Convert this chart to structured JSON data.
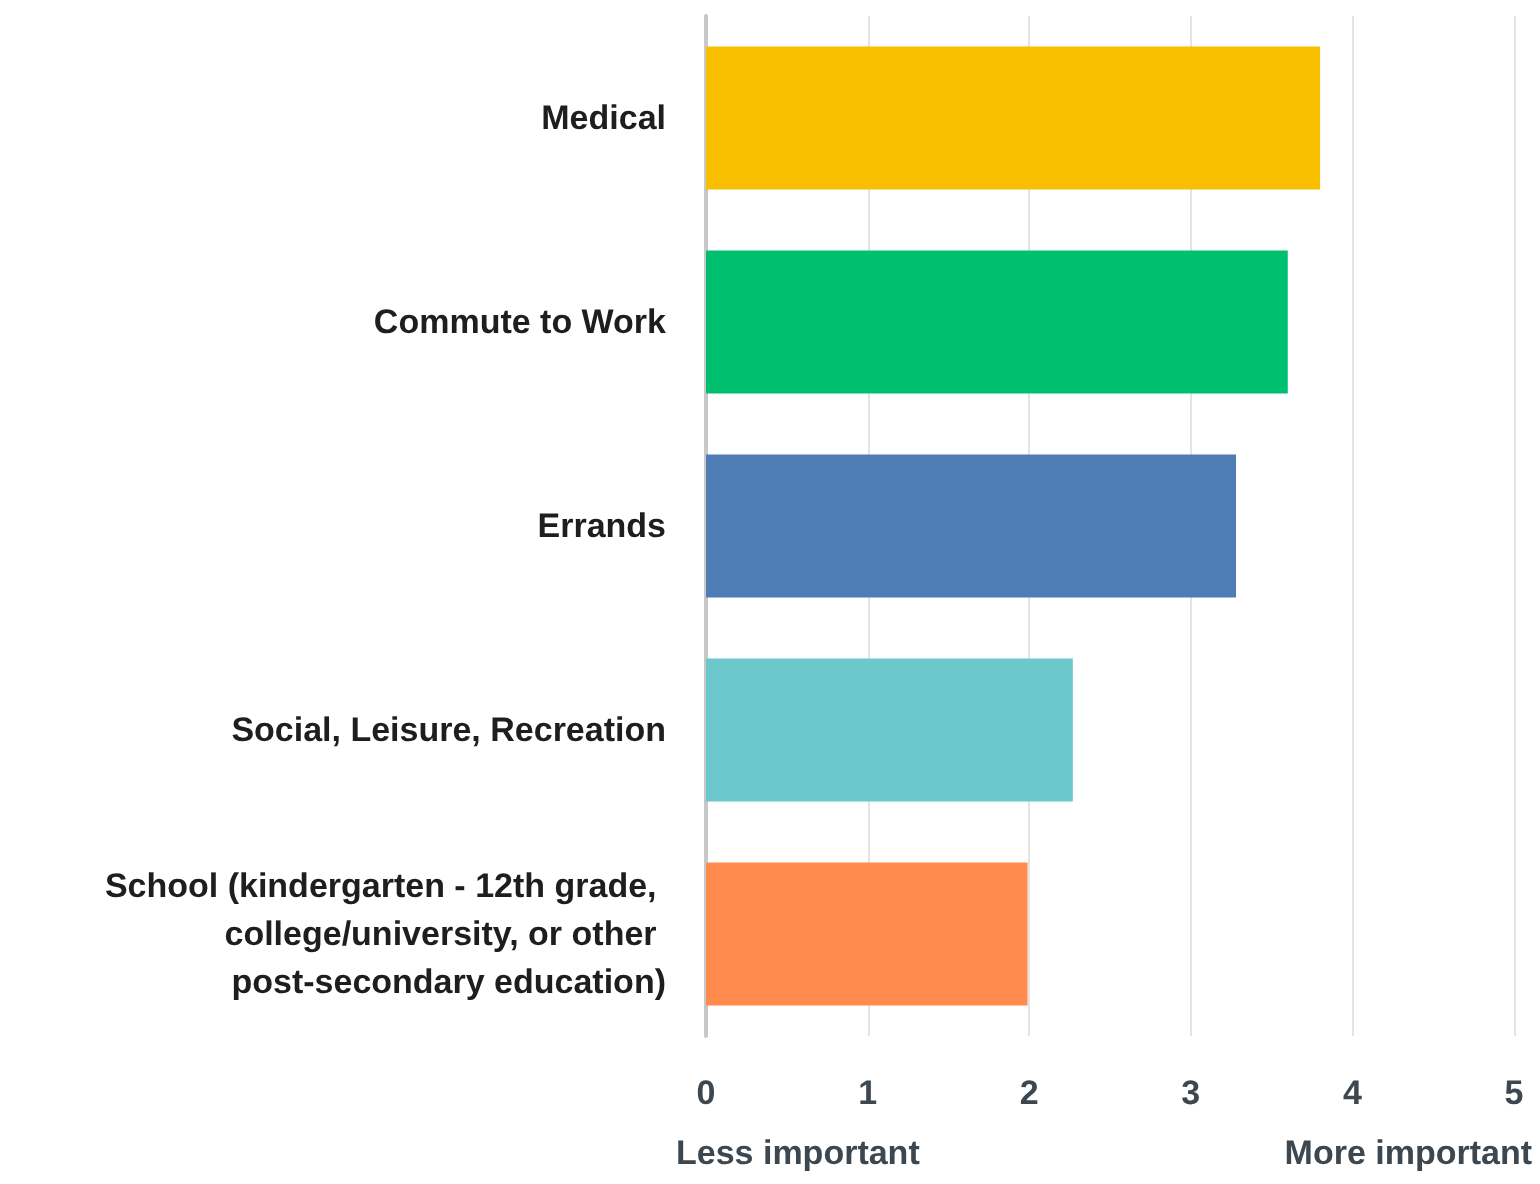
{
  "chart_data": {
    "type": "bar",
    "orientation": "horizontal",
    "categories": [
      "Medical",
      "Commute to Work",
      "Errands",
      "Social, Leisure, Recreation",
      "School (kindergarten - 12th grade, college/university, or other post-secondary education)"
    ],
    "values": [
      3.8,
      3.6,
      3.28,
      2.27,
      1.99
    ],
    "colors": [
      "#f8be00",
      "#00bf6f",
      "#507cb6",
      "#6bc8cd",
      "#ff8b4f"
    ],
    "xlim": [
      0,
      5
    ],
    "xticks": [
      0,
      1,
      2,
      3,
      4,
      5
    ],
    "grid": "x",
    "annotations": [
      "Less important",
      "More important"
    ]
  }
}
